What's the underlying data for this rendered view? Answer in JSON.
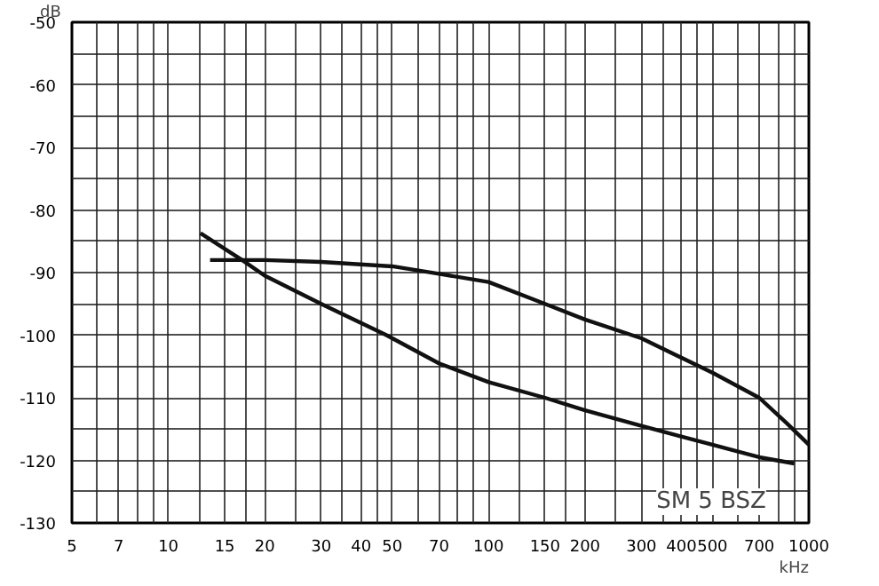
{
  "chart_data": {
    "type": "line",
    "xlabel": "kHz",
    "ylabel": "dB",
    "log": "x",
    "xlim": [
      5,
      1000
    ],
    "ylim": [
      -130,
      -50
    ],
    "xticks": [
      5,
      {
        "value": 6,
        "label": null
      },
      7,
      {
        "value": 8,
        "label": null
      },
      {
        "value": 9,
        "label": null
      },
      10,
      {
        "value": 12.5,
        "label": null
      },
      15,
      {
        "value": 17.5,
        "label": null
      },
      20,
      {
        "value": 25,
        "label": null
      },
      30,
      {
        "value": 35,
        "label": null
      },
      40,
      {
        "value": 45,
        "label": null
      },
      50,
      {
        "value": 60,
        "label": null
      },
      70,
      {
        "value": 80,
        "label": null
      },
      {
        "value": 90,
        "label": null
      },
      100,
      {
        "value": 125,
        "label": null
      },
      150,
      {
        "value": 175,
        "label": null
      },
      200,
      {
        "value": 250,
        "label": null
      },
      300,
      {
        "value": 350,
        "label": null
      },
      400,
      {
        "value": 450,
        "label": null
      },
      500,
      {
        "value": 600,
        "label": null
      },
      700,
      {
        "value": 800,
        "label": null
      },
      {
        "value": 900,
        "label": null
      },
      1000
    ],
    "yticks": [
      -130,
      {
        "value": -125,
        "label": null
      },
      -120,
      {
        "value": -115,
        "label": null
      },
      -110,
      {
        "value": -105,
        "label": null
      },
      -100,
      {
        "value": -95,
        "label": null
      },
      -90,
      {
        "value": -85,
        "label": null
      },
      -80,
      {
        "value": -75,
        "label": null
      },
      -70,
      {
        "value": -65,
        "label": null
      },
      -60,
      {
        "value": -55,
        "label": null
      },
      -50
    ],
    "grid": true,
    "series": [
      {
        "color": "#111111",
        "x": [
          13.5,
          20,
          30,
          50,
          70,
          100,
          150,
          200,
          300,
          500,
          700,
          850,
          1000
        ],
        "values": [
          -88,
          -88,
          -88.3,
          -89,
          -90.2,
          -91.5,
          -95,
          -97.5,
          -100.5,
          -106,
          -110,
          -114,
          -117.5
        ]
      },
      {
        "color": "#111111",
        "x": [
          12.6,
          17,
          20,
          30,
          48,
          70,
          100,
          150,
          200,
          300,
          500,
          700,
          900
        ],
        "values": [
          -83.7,
          -88,
          -90.5,
          -95,
          -100,
          -104.5,
          -107.5,
          -110,
          -112,
          -114.5,
          -117.5,
          -119.5,
          -120.5
        ]
      }
    ],
    "annotations": [
      "SM 5 BSZ"
    ]
  }
}
